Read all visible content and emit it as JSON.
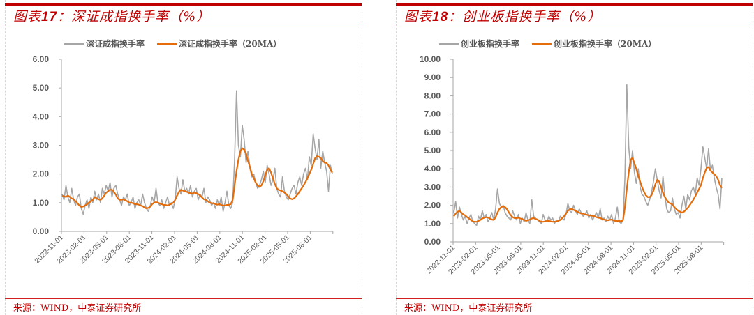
{
  "colors": {
    "accent_red": "#c00000",
    "raw_series": "#a6a6a6",
    "ma_series": "#e46c0a",
    "axis": "#a6a6a6",
    "tick_text": "#595959"
  },
  "panels": [
    {
      "title_prefix": "图表",
      "title_number": "17",
      "title_text": "：深证成指换手率（%）",
      "legend": [
        "深证成指换手率",
        "深证成指换手率（20MA）"
      ],
      "source": "来源：WIND，中泰证券研究所"
    },
    {
      "title_prefix": "图表",
      "title_number": "18",
      "title_text": "：创业板指换手率（%）",
      "legend": [
        "创业板指换手率",
        "创业板指换手率（20MA）"
      ],
      "source": "来源：WIND，中泰证券研究所"
    }
  ],
  "chart_data": [
    {
      "type": "line",
      "title": "图表17：深证成指换手率（%）",
      "xlabel": "",
      "ylabel": "",
      "ylim": [
        0,
        6
      ],
      "yticks": [
        "6.00",
        "5.00",
        "4.00",
        "3.00",
        "2.00",
        "1.00",
        "0.00"
      ],
      "xticks": [
        "2022-11-01",
        "2023-02-01",
        "2023-05-01",
        "2023-08-01",
        "2023-11-01",
        "2024-02-01",
        "2024-05-01",
        "2024-08-01",
        "2024-11-01",
        "2025-02-01",
        "2025-05-01",
        "2025-08-01"
      ],
      "grid": false,
      "legend_position": "top",
      "x_range": [
        "2022-11-01",
        "2025-10-31"
      ],
      "series": [
        {
          "name": "深证成指换手率",
          "values": [
            1.3,
            1.1,
            1.6,
            1.2,
            1.0,
            1.5,
            1.1,
            0.9,
            1.2,
            1.3,
            0.8,
            0.6,
            0.9,
            1.1,
            0.8,
            1.2,
            1.0,
            1.4,
            1.1,
            1.3,
            1.0,
            1.5,
            1.3,
            1.6,
            1.4,
            1.7,
            1.2,
            1.5,
            1.6,
            1.3,
            1.1,
            0.9,
            1.2,
            1.1,
            1.3,
            0.9,
            1.0,
            1.2,
            0.8,
            1.0,
            1.1,
            0.9,
            1.3,
            1.0,
            0.8,
            0.7,
            0.9,
            1.2,
            1.0,
            1.5,
            1.0,
            0.9,
            1.1,
            0.8,
            1.0,
            1.2,
            0.9,
            1.0,
            0.8,
            1.1,
            1.9,
            1.5,
            1.3,
            1.8,
            1.4,
            1.5,
            1.3,
            1.6,
            1.2,
            1.4,
            1.5,
            1.1,
            1.3,
            1.2,
            1.5,
            1.0,
            1.2,
            1.1,
            0.9,
            1.0,
            0.8,
            1.1,
            0.9,
            1.2,
            0.7,
            1.0,
            1.4,
            0.9,
            0.8,
            1.0,
            2.5,
            4.9,
            3.0,
            2.6,
            3.7,
            3.2,
            2.4,
            2.8,
            2.2,
            1.9,
            2.0,
            1.7,
            1.5,
            1.6,
            1.8,
            2.1,
            1.7,
            2.3,
            2.0,
            1.6,
            1.8,
            2.2,
            1.5,
            1.3,
            1.2,
            1.9,
            1.4,
            1.2,
            1.1,
            1.3,
            1.5,
            1.6,
            1.3,
            1.7,
            1.9,
            1.6,
            2.0,
            2.2,
            1.8,
            2.6,
            2.3,
            3.4,
            2.9,
            2.5,
            3.2,
            2.2,
            2.8,
            2.4,
            2.1,
            1.4,
            2.3,
            2.0
          ],
          "color": "#a6a6a6"
        },
        {
          "name": "深证成指换手率（20MA）",
          "values": [
            1.25,
            1.22,
            1.2,
            1.25,
            1.2,
            1.15,
            1.12,
            1.05,
            0.98,
            0.9,
            0.85,
            0.87,
            0.9,
            0.95,
            1.0,
            1.05,
            1.1,
            1.2,
            1.15,
            1.12,
            1.1,
            1.15,
            1.25,
            1.35,
            1.4,
            1.45,
            1.45,
            1.38,
            1.28,
            1.15,
            1.1,
            1.1,
            1.12,
            1.08,
            1.05,
            1.0,
            1.0,
            0.98,
            0.95,
            0.95,
            0.93,
            0.9,
            0.88,
            0.83,
            0.8,
            0.82,
            0.86,
            0.95,
            1.0,
            1.02,
            1.0,
            0.97,
            0.95,
            0.92,
            0.92,
            0.9,
            0.93,
            0.96,
            1.0,
            1.1,
            1.25,
            1.38,
            1.45,
            1.42,
            1.4,
            1.38,
            1.35,
            1.33,
            1.32,
            1.35,
            1.33,
            1.3,
            1.25,
            1.18,
            1.12,
            1.1,
            1.05,
            1.0,
            0.98,
            0.98,
            0.95,
            0.93,
            0.95,
            0.92,
            0.9,
            0.9,
            0.92,
            0.92,
            0.95,
            1.1,
            1.6,
            2.1,
            2.5,
            2.8,
            2.9,
            2.85,
            2.7,
            2.45,
            2.25,
            2.0,
            1.85,
            1.7,
            1.6,
            1.55,
            1.6,
            1.75,
            1.95,
            2.15,
            2.2,
            2.05,
            1.85,
            1.65,
            1.5,
            1.45,
            1.42,
            1.4,
            1.35,
            1.3,
            1.22,
            1.15,
            1.12,
            1.15,
            1.22,
            1.3,
            1.4,
            1.5,
            1.6,
            1.72,
            1.85,
            2.0,
            2.15,
            2.35,
            2.55,
            2.62,
            2.6,
            2.55,
            2.45,
            2.4,
            2.38,
            2.3,
            2.15,
            2.05
          ],
          "color": "#e46c0a"
        }
      ]
    },
    {
      "type": "line",
      "title": "图表18：创业板指换手率（%）",
      "xlabel": "",
      "ylabel": "",
      "ylim": [
        0,
        10
      ],
      "yticks": [
        "10.00",
        "9.00",
        "8.00",
        "7.00",
        "6.00",
        "5.00",
        "4.00",
        "3.00",
        "2.00",
        "1.00",
        "0.00"
      ],
      "xticks": [
        "2022-11-01",
        "2023-02-01",
        "2023-05-01",
        "2023-08-01",
        "2023-11-01",
        "2024-02-01",
        "2024-05-01",
        "2024-08-01",
        "2024-11-01",
        "2025-02-01",
        "2025-05-01",
        "2025-08-01"
      ],
      "grid": false,
      "legend_position": "top",
      "x_range": [
        "2022-11-01",
        "2025-10-31"
      ],
      "series": [
        {
          "name": "创业板指换手率",
          "values": [
            1.6,
            2.2,
            1.3,
            1.9,
            1.5,
            1.2,
            1.4,
            1.0,
            1.3,
            1.5,
            1.1,
            1.0,
            0.9,
            1.4,
            1.2,
            1.7,
            1.3,
            1.5,
            1.1,
            1.3,
            1.6,
            1.2,
            1.8,
            2.9,
            2.1,
            1.9,
            2.0,
            1.6,
            1.4,
            1.3,
            1.2,
            1.7,
            1.4,
            1.2,
            1.5,
            1.0,
            1.3,
            1.1,
            1.6,
            1.2,
            1.0,
            2.3,
            1.4,
            1.3,
            1.2,
            1.1,
            1.0,
            1.5,
            1.2,
            1.1,
            1.4,
            1.2,
            1.3,
            1.0,
            1.2,
            1.1,
            1.4,
            1.3,
            1.2,
            1.5,
            2.1,
            1.7,
            1.6,
            2.0,
            1.7,
            1.5,
            1.8,
            1.6,
            1.4,
            1.5,
            1.7,
            1.3,
            1.5,
            1.2,
            1.4,
            1.6,
            1.3,
            1.8,
            1.2,
            1.3,
            1.1,
            1.4,
            1.2,
            1.5,
            1.0,
            1.3,
            1.9,
            1.1,
            1.0,
            1.2,
            3.5,
            8.6,
            5.2,
            4.0,
            5.0,
            3.8,
            3.2,
            4.0,
            3.0,
            2.6,
            2.5,
            2.2,
            2.0,
            2.3,
            2.7,
            3.3,
            4.0,
            3.4,
            2.8,
            2.4,
            3.6,
            2.5,
            1.8,
            1.6,
            1.7,
            2.4,
            1.8,
            1.5,
            1.6,
            1.3,
            2.0,
            2.5,
            1.8,
            2.6,
            2.3,
            2.8,
            3.0,
            2.6,
            3.5,
            3.1,
            4.0,
            5.2,
            4.6,
            4.0,
            5.1,
            3.9,
            4.2,
            3.5,
            3.0,
            2.6,
            1.8,
            3.5
          ],
          "color": "#a6a6a6"
        },
        {
          "name": "创业板指换手率（20MA）",
          "values": [
            1.4,
            1.55,
            1.65,
            1.7,
            1.6,
            1.5,
            1.45,
            1.35,
            1.28,
            1.2,
            1.12,
            1.1,
            1.1,
            1.15,
            1.2,
            1.28,
            1.32,
            1.35,
            1.33,
            1.28,
            1.22,
            1.2,
            1.35,
            1.6,
            1.8,
            1.9,
            1.95,
            1.9,
            1.78,
            1.6,
            1.45,
            1.35,
            1.3,
            1.3,
            1.32,
            1.28,
            1.25,
            1.2,
            1.15,
            1.18,
            1.22,
            1.28,
            1.3,
            1.25,
            1.22,
            1.15,
            1.1,
            1.1,
            1.12,
            1.15,
            1.15,
            1.12,
            1.1,
            1.1,
            1.12,
            1.15,
            1.2,
            1.3,
            1.4,
            1.55,
            1.7,
            1.78,
            1.8,
            1.75,
            1.7,
            1.65,
            1.6,
            1.55,
            1.55,
            1.5,
            1.48,
            1.45,
            1.45,
            1.42,
            1.4,
            1.35,
            1.32,
            1.3,
            1.25,
            1.22,
            1.2,
            1.18,
            1.2,
            1.22,
            1.18,
            1.15,
            1.15,
            1.15,
            1.12,
            1.2,
            1.9,
            2.9,
            3.8,
            4.5,
            4.6,
            4.3,
            4.0,
            3.6,
            3.3,
            3.0,
            2.75,
            2.55,
            2.45,
            2.45,
            2.55,
            2.8,
            3.15,
            3.4,
            3.3,
            3.0,
            2.7,
            2.45,
            2.3,
            2.15,
            2.1,
            2.05,
            1.9,
            1.8,
            1.7,
            1.65,
            1.6,
            1.65,
            1.75,
            1.85,
            2.0,
            2.15,
            2.3,
            2.5,
            2.7,
            2.9,
            3.1,
            3.5,
            3.8,
            4.05,
            4.1,
            3.9,
            3.8,
            3.7,
            3.6,
            3.4,
            3.1,
            2.95
          ],
          "color": "#e46c0a"
        }
      ]
    }
  ]
}
